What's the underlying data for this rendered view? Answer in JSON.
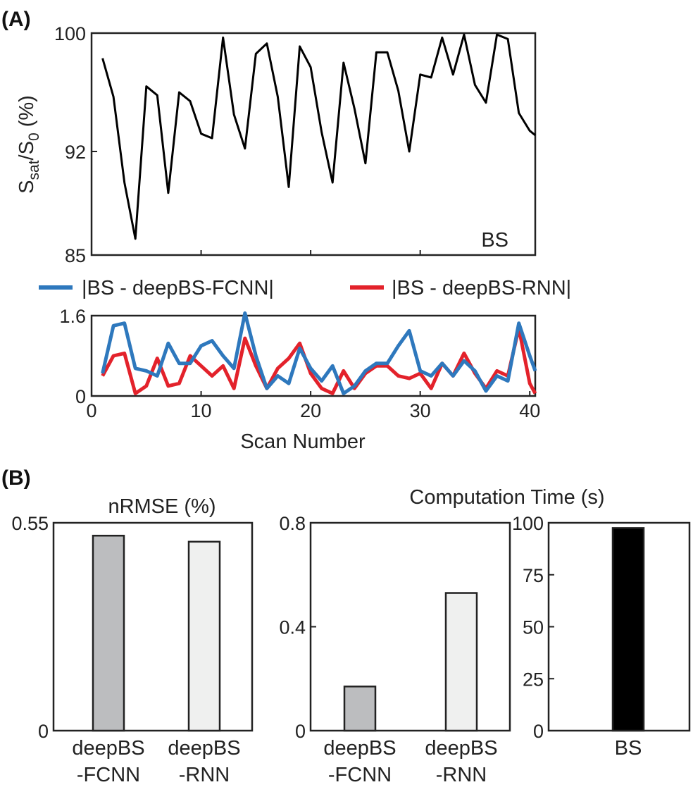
{
  "panel_labels": {
    "a": "(A)",
    "b": "(B)"
  },
  "colors": {
    "fcnn_line": "#2e78bd",
    "rnn_line": "#e3222b",
    "fcnn_bar": "#bcbdbf",
    "rnn_bar": "#eff0ef",
    "bs_bar": "#000000"
  },
  "chart_data": [
    {
      "id": "ssat",
      "type": "line",
      "ylabel": {
        "main": "S",
        "sub1": "sat",
        "mid": "/S",
        "sub2": "0",
        "tail": " (%)"
      },
      "annotation": "BS",
      "xlim": [
        0,
        40.5
      ],
      "ylim": [
        85,
        100
      ],
      "yticks": [
        85,
        92,
        100
      ],
      "xticks": [
        0,
        10,
        20,
        30,
        40
      ],
      "series": [
        {
          "x": [
            1,
            2,
            3,
            4,
            5,
            6,
            7,
            8,
            9,
            10,
            11,
            12,
            13,
            14,
            15,
            16,
            17,
            18,
            19,
            20,
            21,
            22,
            23,
            24,
            25,
            26,
            27,
            28,
            29,
            30,
            31,
            32,
            33,
            34,
            35,
            36,
            37,
            38,
            39,
            40,
            40.5
          ],
          "values": [
            98.3,
            95.7,
            89.9,
            86.1,
            96.4,
            95.8,
            89.2,
            96.0,
            95.4,
            93.2,
            92.9,
            99.7,
            94.5,
            92.2,
            98.6,
            99.3,
            95.7,
            89.6,
            99.1,
            97.7,
            93.3,
            89.9,
            98.0,
            94.9,
            91.2,
            98.7,
            98.7,
            96.1,
            92.0,
            97.2,
            97.0,
            99.7,
            97.2,
            99.9,
            96.5,
            95.3,
            99.9,
            99.6,
            94.6,
            93.4,
            93.1
          ]
        }
      ]
    },
    {
      "id": "diff",
      "type": "line",
      "xlabel": "Scan Number",
      "xlim": [
        0,
        40.5
      ],
      "ylim": [
        0,
        1.6
      ],
      "yticks": [
        "0",
        "1.6"
      ],
      "xticks": [
        "0",
        "10",
        "20",
        "30",
        "40"
      ],
      "series": [
        {
          "name": "|BS - deepBS-FCNN|",
          "color": "#2e78bd",
          "x": [
            1,
            2,
            3,
            4,
            5,
            6,
            7,
            8,
            9,
            10,
            11,
            12,
            13,
            14,
            15,
            16,
            17,
            18,
            19,
            20,
            21,
            22,
            23,
            24,
            25,
            26,
            27,
            28,
            29,
            30,
            31,
            32,
            33,
            34,
            35,
            36,
            37,
            38,
            39,
            40,
            40.5
          ],
          "values": [
            0.45,
            1.4,
            1.45,
            0.55,
            0.5,
            0.4,
            1.05,
            0.65,
            0.65,
            1.0,
            1.1,
            0.8,
            0.55,
            1.65,
            0.8,
            0.15,
            0.4,
            0.25,
            0.95,
            0.55,
            0.3,
            0.6,
            0.05,
            0.2,
            0.5,
            0.65,
            0.65,
            1.0,
            1.3,
            0.5,
            0.4,
            0.65,
            0.4,
            0.7,
            0.5,
            0.1,
            0.4,
            0.3,
            1.45,
            0.8,
            0.5
          ]
        },
        {
          "name": "|BS - deepBS-RNN|",
          "color": "#e3222b",
          "x": [
            1,
            2,
            3,
            4,
            5,
            6,
            7,
            8,
            9,
            10,
            11,
            12,
            13,
            14,
            15,
            16,
            17,
            18,
            19,
            20,
            21,
            22,
            23,
            24,
            25,
            26,
            27,
            28,
            29,
            30,
            31,
            32,
            33,
            34,
            35,
            36,
            37,
            38,
            39,
            40,
            40.5
          ],
          "values": [
            0.4,
            0.8,
            0.85,
            0.05,
            0.2,
            0.75,
            0.2,
            0.25,
            0.8,
            0.6,
            0.4,
            0.6,
            0.15,
            1.15,
            0.6,
            0.15,
            0.55,
            0.75,
            1.05,
            0.45,
            0.15,
            0.05,
            0.5,
            0.15,
            0.45,
            0.6,
            0.6,
            0.4,
            0.35,
            0.45,
            0.15,
            0.65,
            0.4,
            0.85,
            0.45,
            0.15,
            0.5,
            0.4,
            1.35,
            0.25,
            0.05
          ]
        }
      ]
    },
    {
      "id": "nrmse",
      "type": "bar",
      "title": "nRMSE (%)",
      "categories": [
        "deepBS\n-FCNN",
        "deepBS\n-RNN"
      ],
      "values": [
        0.516,
        0.5
      ],
      "ylim": [
        0,
        0.55
      ],
      "yticks": [
        "0",
        "0.55"
      ]
    },
    {
      "id": "time_deep",
      "type": "bar",
      "title": "Computation Time (s)",
      "categories": [
        "deepBS\n-FCNN",
        "deepBS\n-RNN"
      ],
      "values": [
        0.17,
        0.53
      ],
      "ylim": [
        0,
        0.8
      ],
      "yticks": [
        "0",
        "0.4",
        "0.8"
      ]
    },
    {
      "id": "time_bs",
      "type": "bar",
      "categories": [
        "BS"
      ],
      "values": [
        97.5
      ],
      "ylim": [
        0,
        100
      ],
      "yticks": [
        "0",
        "25",
        "50",
        "75",
        "100"
      ]
    }
  ]
}
